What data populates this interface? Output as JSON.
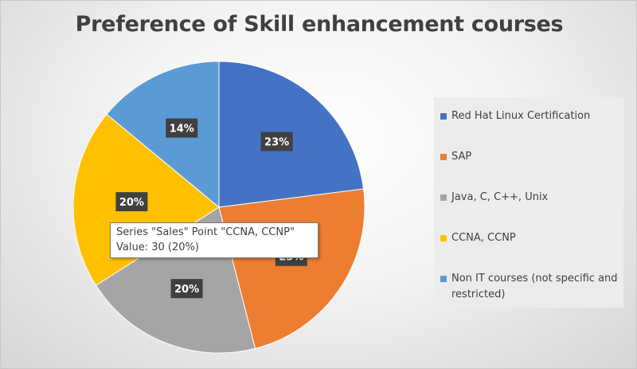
{
  "chart_data": {
    "type": "pie",
    "title": "Preference of Skill enhancement courses",
    "categories": [
      "Red Hat Linux Certification",
      "SAP",
      "Java, C, C++, Unix",
      "CCNA, CCNP",
      "Non IT courses (not specific and restricted)"
    ],
    "values": [
      23,
      23,
      20,
      20,
      14
    ],
    "data_labels": [
      "23%",
      "23%",
      "20%",
      "20%",
      "14%"
    ],
    "colors": [
      "#4472c4",
      "#ed7d31",
      "#a5a5a5",
      "#ffc000",
      "#5b9bd5"
    ],
    "legend_position": "right"
  },
  "tooltip": {
    "line1": "Series \"Sales\" Point \"CCNA, CCNP\"",
    "line2": "Value: 30 (20%)"
  }
}
